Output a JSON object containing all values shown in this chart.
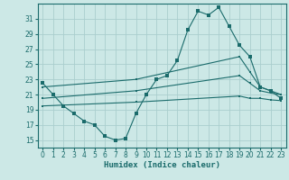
{
  "background_color": "#cce8e6",
  "grid_color": "#aacece",
  "line_color": "#1a6b6b",
  "xlabel": "Humidex (Indice chaleur)",
  "ylim": [
    14,
    33
  ],
  "xlim": [
    -0.5,
    23.5
  ],
  "yticks": [
    15,
    17,
    19,
    21,
    23,
    25,
    27,
    29,
    31
  ],
  "xticks": [
    0,
    1,
    2,
    3,
    4,
    5,
    6,
    7,
    8,
    9,
    10,
    11,
    12,
    13,
    14,
    15,
    16,
    17,
    18,
    19,
    20,
    21,
    22,
    23
  ],
  "curves": [
    {
      "x": [
        0,
        1,
        2,
        3,
        4,
        5,
        6,
        7,
        8,
        9,
        10,
        11,
        12,
        13,
        14,
        15,
        16,
        17,
        18,
        19,
        20,
        21,
        22,
        23
      ],
      "y": [
        22.5,
        21.0,
        19.5,
        18.5,
        17.5,
        17.0,
        15.5,
        15.0,
        15.2,
        18.5,
        21.0,
        23.0,
        23.5,
        25.5,
        29.5,
        32.0,
        31.5,
        32.5,
        30.0,
        27.5,
        26.0,
        22.0,
        21.5,
        20.5
      ]
    },
    {
      "x": [
        0,
        9,
        19,
        20,
        21,
        22,
        23
      ],
      "y": [
        22.0,
        23.0,
        26.0,
        24.0,
        22.0,
        21.5,
        21.0
      ]
    },
    {
      "x": [
        0,
        9,
        19,
        20,
        21,
        22,
        23
      ],
      "y": [
        20.5,
        21.5,
        23.5,
        22.5,
        21.5,
        21.2,
        21.0
      ]
    },
    {
      "x": [
        0,
        9,
        19,
        20,
        21,
        22,
        23
      ],
      "y": [
        19.5,
        20.0,
        20.8,
        20.5,
        20.5,
        20.3,
        20.2
      ]
    }
  ]
}
